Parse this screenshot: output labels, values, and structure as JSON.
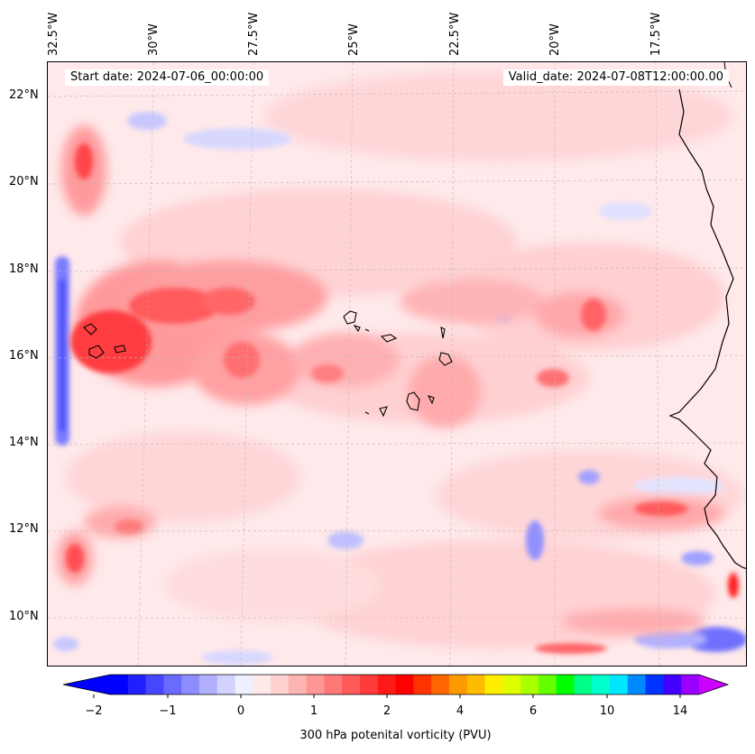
{
  "header": {
    "start_date": "Start date: 2024-07-06_00:00:00",
    "valid_date": "Valid_date: 2024-07-08T12:00:00.00"
  },
  "axes": {
    "longitude_labels": [
      "32.5°W",
      "30°W",
      "27.5°W",
      "25°W",
      "22.5°W",
      "20°W",
      "17.5°W"
    ],
    "latitude_labels": [
      "22°N",
      "20°N",
      "18°N",
      "16°N",
      "14°N",
      "12°N",
      "10°N"
    ]
  },
  "colorbar": {
    "label": "300 hPa potenital vorticity (PVU)",
    "ticks": [
      "−2",
      "−1",
      "0",
      "1",
      "2",
      "4",
      "6",
      "10",
      "14"
    ],
    "colors": [
      "#0000ff",
      "#2020ff",
      "#4646ff",
      "#6a6aff",
      "#8d8dff",
      "#b0b0ff",
      "#d2d2ff",
      "#efefff",
      "#ffe8e8",
      "#ffd0d0",
      "#ffb4b4",
      "#ff9696",
      "#ff7878",
      "#ff5a5a",
      "#ff3a3a",
      "#ff1a1a",
      "#ff0000",
      "#ff3300",
      "#ff6600",
      "#ff9900",
      "#ffbb00",
      "#ffee00",
      "#ddff00",
      "#aaff00",
      "#66ff00",
      "#00ff00",
      "#00ff88",
      "#00ffcc",
      "#00e6ff",
      "#0088ff",
      "#0033ff",
      "#4400ff",
      "#9900ff"
    ],
    "extend_low_color": "#0000ff",
    "extend_high_color": "#cc00ff"
  },
  "map": {
    "background_color": "#ffe9ea",
    "features": [
      "coastline-west-africa",
      "cape-verde-islands"
    ]
  }
}
